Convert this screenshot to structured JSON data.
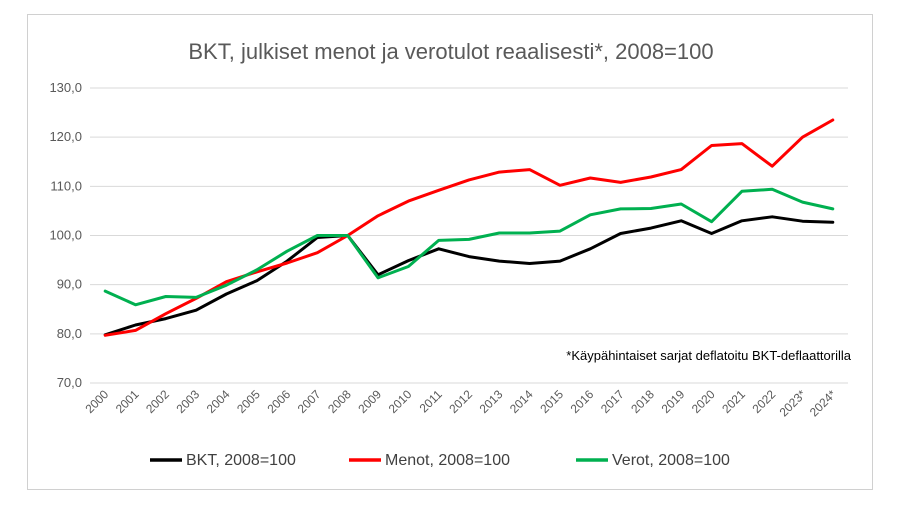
{
  "chart_data": {
    "type": "line",
    "title": "BKT, julkiset menot ja verotulot reaalisesti*, 2008=100",
    "note": "*Käypähintaiset sarjat deflatoitu BKT-deflaattorilla",
    "xlabel": "",
    "ylabel": "",
    "ylim": [
      70,
      130
    ],
    "yticks": [
      "70,0",
      "80,0",
      "90,0",
      "100,0",
      "110,0",
      "120,0",
      "130,0"
    ],
    "ytick_values": [
      70,
      80,
      90,
      100,
      110,
      120,
      130
    ],
    "grid": true,
    "legend_position": "bottom",
    "x": [
      "2000",
      "2001",
      "2002",
      "2003",
      "2004",
      "2005",
      "2006",
      "2007",
      "2008",
      "2009",
      "2010",
      "2011",
      "2012",
      "2013",
      "2014",
      "2015",
      "2016",
      "2017",
      "2018",
      "2019",
      "2020",
      "2021",
      "2022",
      "2023*",
      "2024*"
    ],
    "series": [
      {
        "name": "BKT, 2008=100",
        "color": "#000000",
        "values": [
          79.8,
          81.8,
          83.1,
          84.8,
          88.1,
          90.8,
          94.8,
          99.6,
          100.0,
          92.0,
          94.9,
          97.3,
          95.7,
          94.8,
          94.3,
          94.8,
          97.3,
          100.4,
          101.5,
          103.0,
          100.4,
          103.0,
          103.8,
          102.9,
          102.7
        ]
      },
      {
        "name": "Menot, 2008=100",
        "color": "#ff0000",
        "values": [
          79.7,
          80.7,
          84.1,
          87.2,
          90.6,
          92.6,
          94.4,
          96.5,
          100.0,
          104.0,
          107.0,
          109.2,
          111.3,
          112.9,
          113.4,
          110.2,
          111.7,
          110.8,
          111.9,
          113.4,
          118.3,
          118.7,
          114.1,
          120.0,
          123.5
        ]
      },
      {
        "name": "Verot, 2008=100",
        "color": "#00b050",
        "values": [
          88.7,
          85.9,
          87.6,
          87.4,
          89.9,
          93.0,
          96.8,
          100.0,
          100.0,
          91.4,
          93.7,
          99.0,
          99.2,
          100.5,
          100.5,
          100.9,
          104.2,
          105.4,
          105.5,
          106.4,
          102.8,
          109.0,
          109.4,
          106.8,
          105.4
        ]
      }
    ]
  }
}
